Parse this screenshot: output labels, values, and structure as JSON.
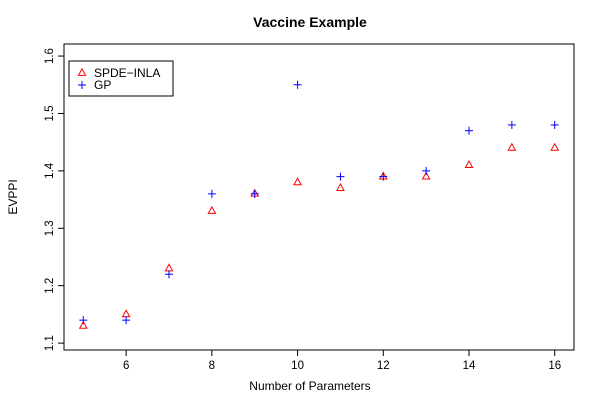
{
  "chart_data": {
    "type": "scatter",
    "title": "Vaccine Example",
    "xlabel": "Number of Parameters",
    "ylabel": "EVPPI",
    "xlim": [
      4.55,
      16.45
    ],
    "ylim": [
      1.088,
      1.621
    ],
    "xticks": [
      6,
      8,
      10,
      12,
      14,
      16
    ],
    "yticks": [
      1.1,
      1.2,
      1.3,
      1.4,
      1.5,
      1.6
    ],
    "grid": false,
    "legend_position": "top-left",
    "x": [
      5,
      6,
      7,
      8,
      9,
      10,
      11,
      12,
      13,
      14,
      15,
      16
    ],
    "series": [
      {
        "name": "SPDE−INLA",
        "marker": "triangle",
        "color": "#ff0000",
        "values": [
          1.13,
          1.15,
          1.23,
          1.33,
          1.36,
          1.38,
          1.37,
          1.39,
          1.39,
          1.41,
          1.44,
          1.44
        ]
      },
      {
        "name": "GP",
        "marker": "plus",
        "color": "#0000ff",
        "values": [
          1.14,
          1.14,
          1.22,
          1.36,
          1.36,
          1.55,
          1.39,
          1.39,
          1.4,
          1.47,
          1.48,
          1.48
        ]
      }
    ]
  }
}
